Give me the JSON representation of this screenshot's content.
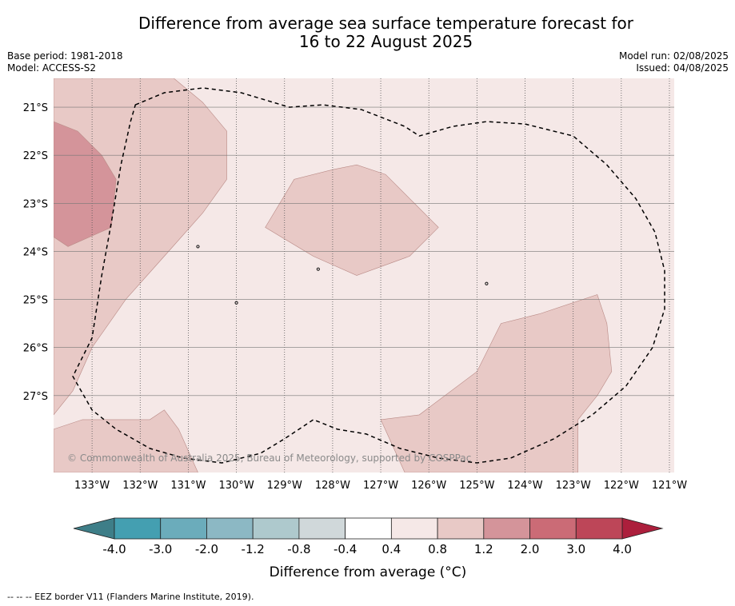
{
  "title": {
    "line1": "Difference from average sea surface temperature forecast for",
    "line2": "16 to 22 August 2025"
  },
  "meta_left": {
    "base_period": "Base period: 1981-2018",
    "model": "Model: ACCESS-S2"
  },
  "meta_right": {
    "model_run": "Model run: 02/08/2025",
    "issued": "Issued: 04/08/2025"
  },
  "copyright": "© Commonwealth of Australia 2025, Bureau of Meteorology, supported by COSPPac",
  "footer": "--  --  -- EEZ border V11 (Flanders Marine Institute, 2019).",
  "map": {
    "lon_range": [
      -133.8,
      -120.9
    ],
    "lat_range": [
      -28.6,
      -20.4
    ],
    "lon_ticks": [
      {
        "value": -133,
        "label": "133°W"
      },
      {
        "value": -132,
        "label": "132°W"
      },
      {
        "value": -131,
        "label": "131°W"
      },
      {
        "value": -130,
        "label": "130°W"
      },
      {
        "value": -129,
        "label": "129°W"
      },
      {
        "value": -128,
        "label": "128°W"
      },
      {
        "value": -127,
        "label": "127°W"
      },
      {
        "value": -126,
        "label": "126°W"
      },
      {
        "value": -125,
        "label": "125°W"
      },
      {
        "value": -124,
        "label": "124°W"
      },
      {
        "value": -123,
        "label": "123°W"
      },
      {
        "value": -122,
        "label": "122°W"
      },
      {
        "value": -121,
        "label": "121°W"
      }
    ],
    "lat_ticks": [
      {
        "value": -21,
        "label": "21°S"
      },
      {
        "value": -22,
        "label": "22°S"
      },
      {
        "value": -23,
        "label": "23°S"
      },
      {
        "value": -24,
        "label": "24°S"
      },
      {
        "value": -25,
        "label": "25°S"
      },
      {
        "value": -26,
        "label": "26°S"
      },
      {
        "value": -27,
        "label": "27°S"
      }
    ],
    "background_color": "#f5e8e7",
    "regions": [
      {
        "name": "anomaly-0.8-1.2-west",
        "color": "#e8c9c6",
        "points": [
          [
            -133.8,
            -20.4
          ],
          [
            -131.3,
            -20.4
          ],
          [
            -130.7,
            -20.9
          ],
          [
            -130.2,
            -21.5
          ],
          [
            -130.2,
            -22.5
          ],
          [
            -130.7,
            -23.2
          ],
          [
            -131.5,
            -24.1
          ],
          [
            -132.3,
            -25.0
          ],
          [
            -133.0,
            -26.0
          ],
          [
            -133.4,
            -26.9
          ],
          [
            -133.8,
            -27.4
          ]
        ]
      },
      {
        "name": "anomaly-1.2-2.0-west",
        "color": "#d4949a",
        "points": [
          [
            -133.8,
            -21.3
          ],
          [
            -133.3,
            -21.5
          ],
          [
            -132.8,
            -22.0
          ],
          [
            -132.5,
            -22.5
          ],
          [
            -132.6,
            -23.5
          ],
          [
            -133.5,
            -23.9
          ],
          [
            -133.8,
            -23.7
          ]
        ]
      },
      {
        "name": "anomaly-0.8-1.2-central",
        "color": "#e8c9c6",
        "points": [
          [
            -128.8,
            -22.5
          ],
          [
            -128.0,
            -22.3
          ],
          [
            -127.5,
            -22.2
          ],
          [
            -126.9,
            -22.4
          ],
          [
            -126.4,
            -22.9
          ],
          [
            -125.9,
            -23.4
          ],
          [
            -125.8,
            -23.5
          ],
          [
            -126.4,
            -24.1
          ],
          [
            -127.5,
            -24.5
          ],
          [
            -128.4,
            -24.1
          ],
          [
            -129.4,
            -23.5
          ]
        ]
      },
      {
        "name": "anomaly-0.8-1.2-southeast",
        "color": "#e8c9c6",
        "points": [
          [
            -127.0,
            -27.5
          ],
          [
            -126.2,
            -27.4
          ],
          [
            -125.0,
            -26.5
          ],
          [
            -124.5,
            -25.5
          ],
          [
            -123.7,
            -25.3
          ],
          [
            -122.5,
            -24.9
          ],
          [
            -122.3,
            -25.5
          ],
          [
            -122.2,
            -26.5
          ],
          [
            -122.5,
            -27.0
          ],
          [
            -122.9,
            -27.5
          ],
          [
            -122.9,
            -28.6
          ],
          [
            -126.5,
            -28.6
          ]
        ]
      },
      {
        "name": "anomaly-0.8-1.2-southwest",
        "color": "#e8c9c6",
        "points": [
          [
            -133.2,
            -27.5
          ],
          [
            -131.8,
            -27.5
          ],
          [
            -131.5,
            -27.3
          ],
          [
            -131.2,
            -27.7
          ],
          [
            -130.8,
            -28.6
          ],
          [
            -133.8,
            -28.6
          ],
          [
            -133.8,
            -27.7
          ]
        ]
      }
    ],
    "eez_border": [
      [
        -132.1,
        -20.95
      ],
      [
        -131.5,
        -20.7
      ],
      [
        -130.7,
        -20.6
      ],
      [
        -129.9,
        -20.7
      ],
      [
        -128.9,
        -21.0
      ],
      [
        -128.2,
        -20.95
      ],
      [
        -127.4,
        -21.05
      ],
      [
        -126.5,
        -21.4
      ],
      [
        -126.2,
        -21.6
      ],
      [
        -125.5,
        -21.4
      ],
      [
        -124.8,
        -21.3
      ],
      [
        -124.0,
        -21.35
      ],
      [
        -123.0,
        -21.6
      ],
      [
        -122.3,
        -22.2
      ],
      [
        -121.7,
        -22.9
      ],
      [
        -121.3,
        -23.6
      ],
      [
        -121.1,
        -24.4
      ],
      [
        -121.1,
        -25.2
      ],
      [
        -121.35,
        -26.0
      ],
      [
        -121.9,
        -26.8
      ],
      [
        -122.6,
        -27.4
      ],
      [
        -123.4,
        -27.9
      ],
      [
        -124.3,
        -28.3
      ],
      [
        -125.0,
        -28.4
      ],
      [
        -125.8,
        -28.3
      ],
      [
        -126.6,
        -28.1
      ],
      [
        -127.3,
        -27.8
      ],
      [
        -127.9,
        -27.7
      ],
      [
        -128.4,
        -27.5
      ],
      [
        -129.0,
        -27.9
      ],
      [
        -129.5,
        -28.2
      ],
      [
        -130.3,
        -28.4
      ],
      [
        -131.1,
        -28.3
      ],
      [
        -131.8,
        -28.1
      ],
      [
        -132.5,
        -27.7
      ],
      [
        -133.0,
        -27.3
      ],
      [
        -133.4,
        -26.6
      ],
      [
        -133.0,
        -25.8
      ],
      [
        -132.8,
        -24.5
      ],
      [
        -132.6,
        -23.4
      ],
      [
        -132.4,
        -22.2
      ],
      [
        -132.2,
        -21.3
      ]
    ],
    "islands": [
      [
        -128.3,
        -24.37
      ],
      [
        -130.8,
        -23.9
      ],
      [
        -130.0,
        -25.07
      ],
      [
        -124.8,
        -24.67
      ]
    ]
  },
  "legend": {
    "ticks": [
      "-4.0",
      "-3.0",
      "-2.0",
      "-1.2",
      "-0.8",
      "-0.4",
      "0.4",
      "0.8",
      "1.2",
      "2.0",
      "3.0",
      "4.0"
    ],
    "colors": [
      "#449fb1",
      "#6bacbb",
      "#8cb8c4",
      "#aec9cd",
      "#d0d8da",
      "#ffffff",
      "#f5e8e7",
      "#e8c9c6",
      "#d4949a",
      "#cb6b76",
      "#bd4658"
    ],
    "extend_low_color": "#3e7e88",
    "extend_high_color": "#ac1f3c",
    "label": "Difference from average (°C)"
  }
}
